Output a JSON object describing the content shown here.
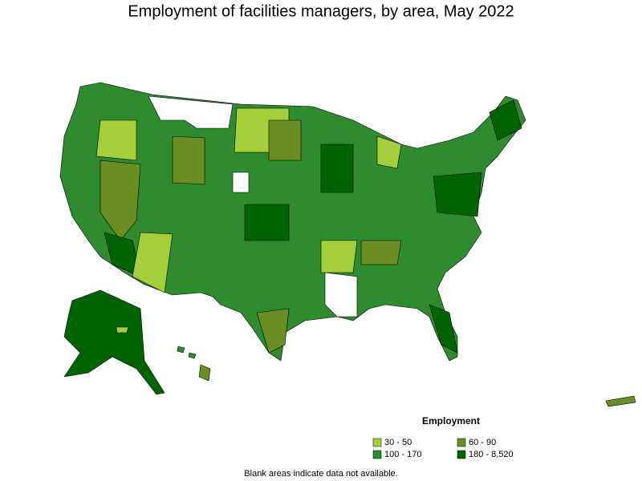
{
  "title": "Employment of facilities managers, by area, May 2022",
  "legend": {
    "title": "Employment",
    "items": [
      {
        "label": "30 - 50",
        "color": "#a3cf3a"
      },
      {
        "label": "60 - 90",
        "color": "#6b8e23"
      },
      {
        "label": "100 - 170",
        "color": "#2e8b2e"
      },
      {
        "label": "180 - 8,520",
        "color": "#006400"
      }
    ]
  },
  "note": "Blank areas indicate data not available."
}
